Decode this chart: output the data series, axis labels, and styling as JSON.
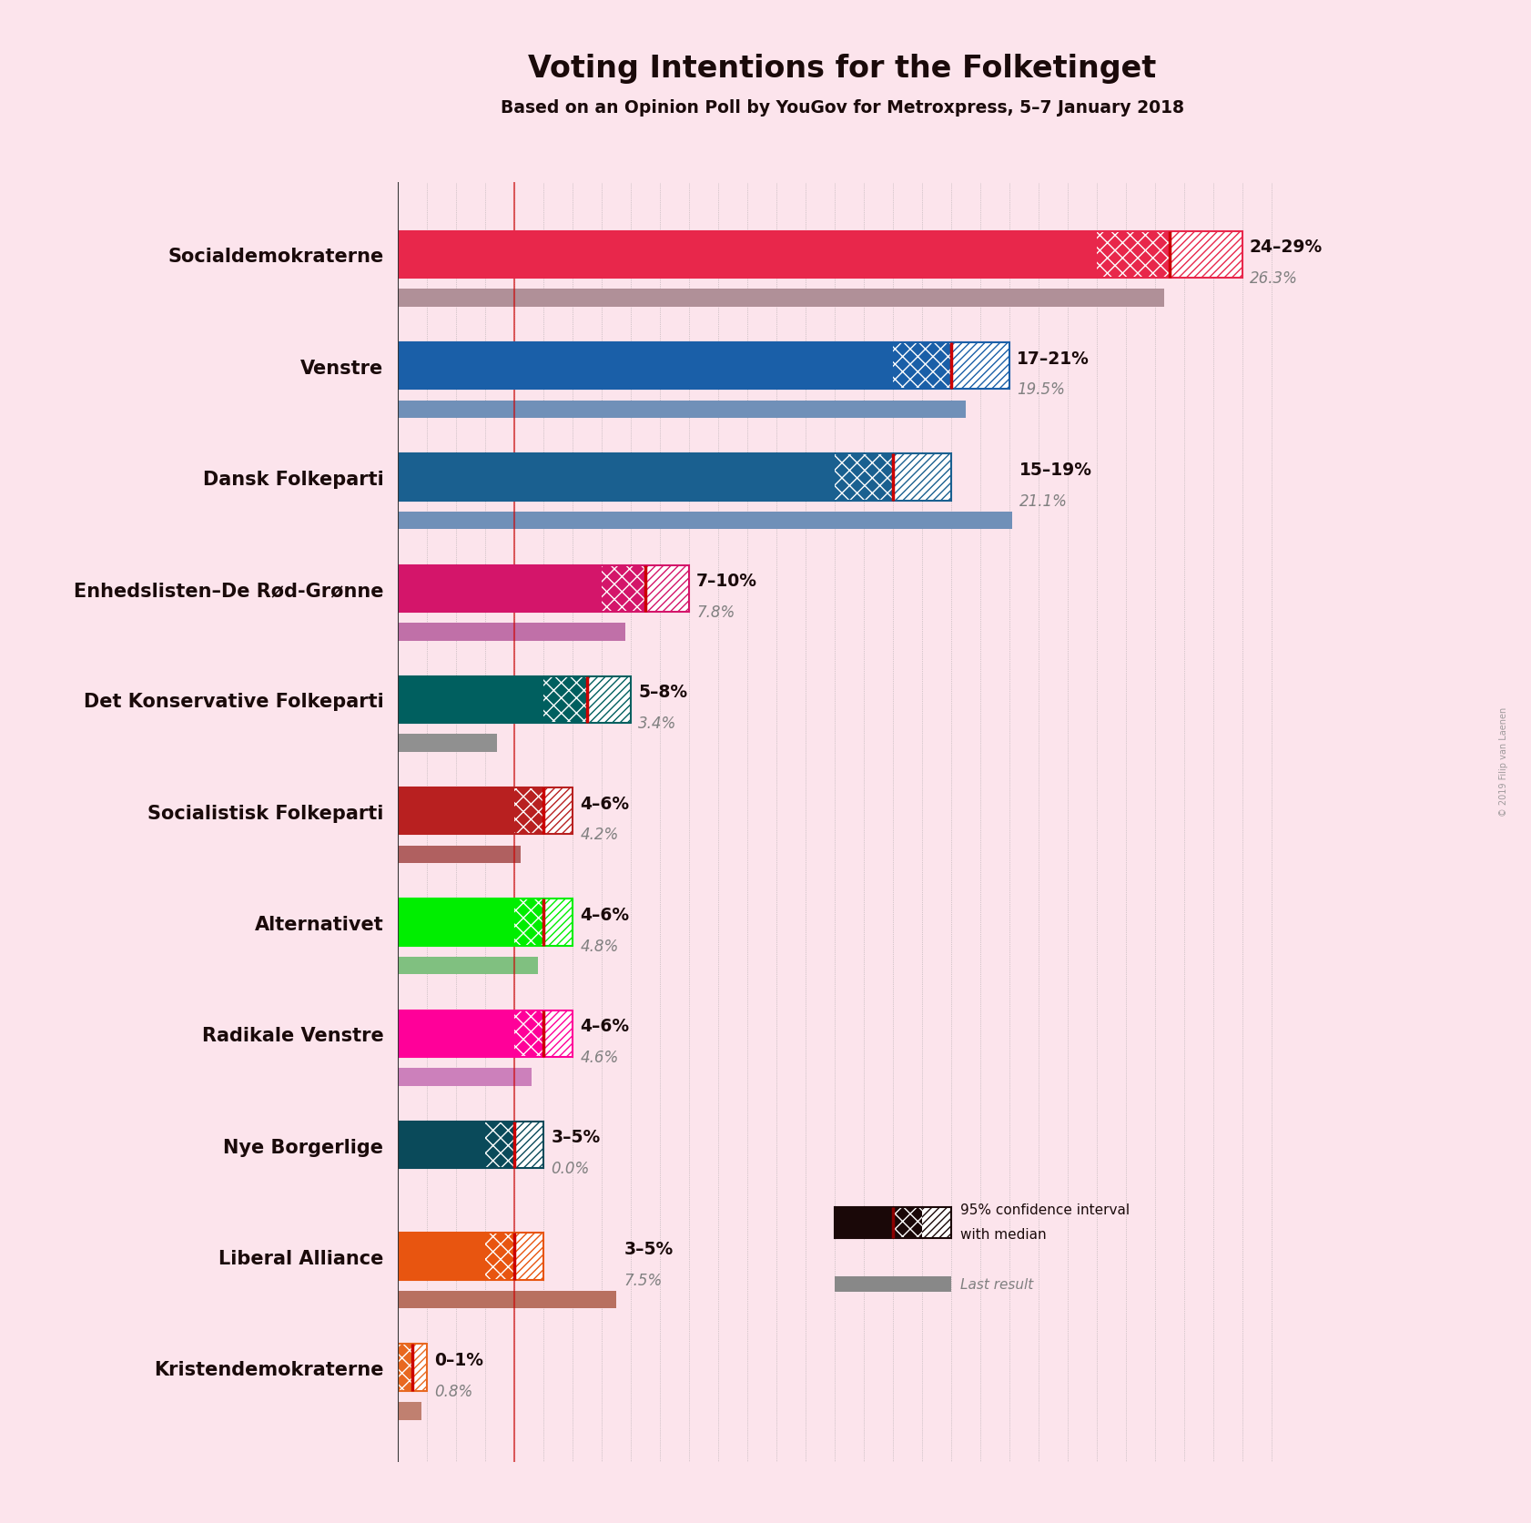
{
  "title": "Voting Intentions for the Folketinget",
  "subtitle": "Based on an Opinion Poll by YouGov for Metroxpress, 5–7 January 2018",
  "background_color": "#fce4ec",
  "parties": [
    "Socialdemokraterne",
    "Venstre",
    "Dansk Folkeparti",
    "Enhedslisten–De Rød-Grønne",
    "Det Konservative Folkeparti",
    "Socialistisk Folkeparti",
    "Alternativet",
    "Radikale Venstre",
    "Nye Borgerlige",
    "Liberal Alliance",
    "Kristendemokraterne"
  ],
  "ci_low": [
    24,
    17,
    15,
    7,
    5,
    4,
    4,
    4,
    3,
    3,
    0
  ],
  "ci_high": [
    29,
    21,
    19,
    10,
    8,
    6,
    6,
    6,
    5,
    5,
    1
  ],
  "median": [
    26.5,
    19.0,
    17.0,
    8.5,
    6.5,
    5.0,
    5.0,
    5.0,
    4.0,
    4.0,
    0.5
  ],
  "last_result": [
    26.3,
    19.5,
    21.1,
    7.8,
    3.4,
    4.2,
    4.8,
    4.6,
    0.0,
    7.5,
    0.8
  ],
  "label_range": [
    "24–29%",
    "17–21%",
    "15–19%",
    "7–10%",
    "5–8%",
    "4–6%",
    "4–6%",
    "4–6%",
    "3–5%",
    "3–5%",
    "0–1%"
  ],
  "label_last": [
    "26.3%",
    "19.5%",
    "21.1%",
    "7.8%",
    "3.4%",
    "4.2%",
    "4.8%",
    "4.6%",
    "0.0%",
    "7.5%",
    "0.8%"
  ],
  "colors": [
    "#e8274b",
    "#1a5fa8",
    "#1a6090",
    "#d4156a",
    "#005f5f",
    "#b82020",
    "#00ee00",
    "#ff0099",
    "#0a4a5a",
    "#e85510",
    "#e86820"
  ],
  "last_colors": [
    "#b09098",
    "#7090b8",
    "#7090b8",
    "#c070a8",
    "#909090",
    "#b06060",
    "#80c080",
    "#cc80bb",
    "#507080",
    "#b87060",
    "#c08070"
  ],
  "xmax": 30,
  "median_line_color": "#cc0000",
  "grid_color": "#999999",
  "watermark": "© 2019 Filip van Laenen"
}
